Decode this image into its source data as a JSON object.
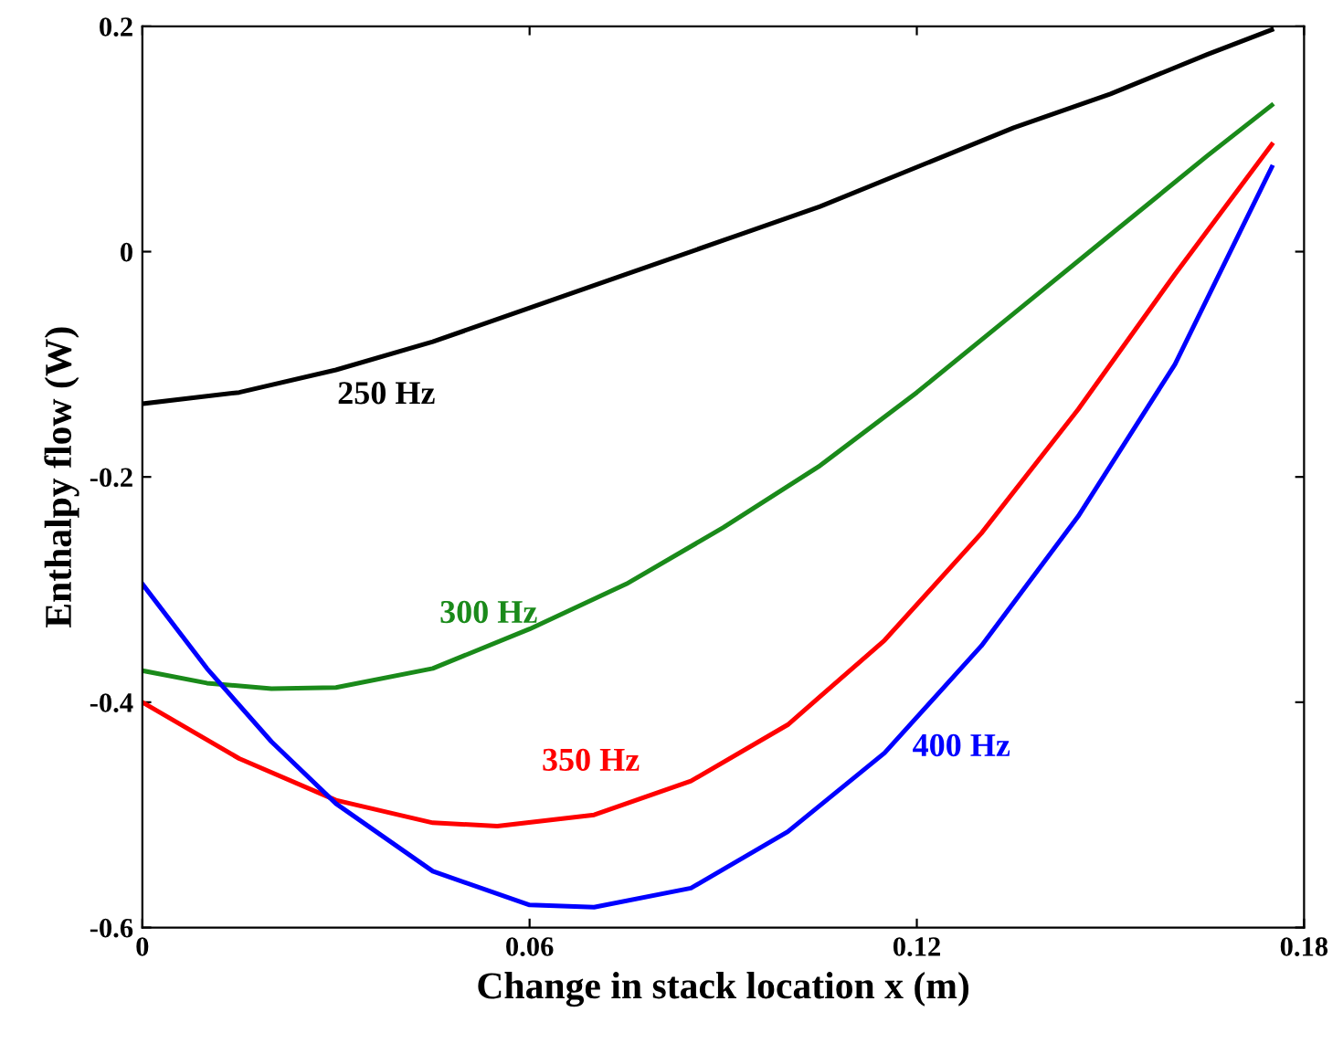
{
  "chart_data": {
    "type": "line",
    "xlabel": "Change in stack location x (m)",
    "ylabel": "Enthalpy flow (W)",
    "xlim": [
      0,
      0.18
    ],
    "xticks": [
      0,
      0.06,
      0.12,
      0.18
    ],
    "ylim": [
      -0.6,
      0.2
    ],
    "yticks": [
      -0.6,
      -0.4,
      -0.2,
      0,
      0.2
    ],
    "grid": false,
    "legend": false,
    "series": [
      {
        "name": "250 Hz",
        "color": "#000000",
        "x": [
          0,
          0.015,
          0.03,
          0.045,
          0.06,
          0.075,
          0.09,
          0.105,
          0.12,
          0.135,
          0.15,
          0.165,
          0.175
        ],
        "values": [
          -0.135,
          -0.125,
          -0.105,
          -0.08,
          -0.05,
          -0.02,
          0.01,
          0.04,
          0.075,
          0.11,
          0.14,
          0.175,
          0.197
        ]
      },
      {
        "name": "300 Hz",
        "color": "#1a8a1a",
        "x": [
          0,
          0.01,
          0.02,
          0.03,
          0.045,
          0.06,
          0.075,
          0.09,
          0.105,
          0.12,
          0.135,
          0.15,
          0.165,
          0.175
        ],
        "values": [
          -0.372,
          -0.383,
          -0.388,
          -0.387,
          -0.37,
          -0.335,
          -0.295,
          -0.245,
          -0.19,
          -0.125,
          -0.055,
          0.015,
          0.085,
          0.13
        ]
      },
      {
        "name": "350 Hz",
        "color": "#ff0000",
        "x": [
          0,
          0.015,
          0.03,
          0.045,
          0.055,
          0.07,
          0.085,
          0.1,
          0.115,
          0.13,
          0.145,
          0.16,
          0.175
        ],
        "values": [
          -0.4,
          -0.45,
          -0.487,
          -0.507,
          -0.51,
          -0.5,
          -0.47,
          -0.42,
          -0.345,
          -0.25,
          -0.14,
          -0.02,
          0.095
        ]
      },
      {
        "name": "400 Hz",
        "color": "#0000ff",
        "x": [
          0,
          0.01,
          0.02,
          0.03,
          0.045,
          0.06,
          0.07,
          0.085,
          0.1,
          0.115,
          0.13,
          0.145,
          0.16,
          0.175
        ],
        "values": [
          -0.295,
          -0.37,
          -0.435,
          -0.49,
          -0.55,
          -0.58,
          -0.582,
          -0.565,
          -0.515,
          -0.445,
          -0.35,
          -0.235,
          -0.1,
          0.075
        ]
      }
    ]
  }
}
